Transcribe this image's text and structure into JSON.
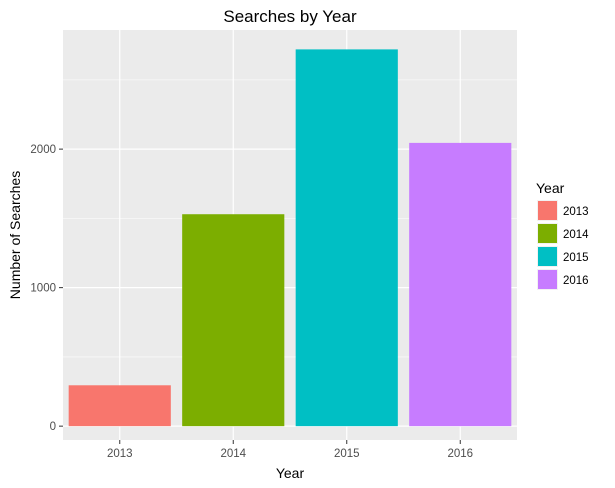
{
  "chart_data": {
    "type": "bar",
    "title": "Searches by Year",
    "xlabel": "Year",
    "ylabel": "Number of Searches",
    "categories": [
      "2013",
      "2014",
      "2015",
      "2016"
    ],
    "values": [
      295,
      1530,
      2720,
      2045
    ],
    "colors": [
      "#F8766D",
      "#7CAE00",
      "#00BFC4",
      "#C77CFF"
    ],
    "ylim": [
      -100,
      2860
    ],
    "yticks": [
      0,
      1000,
      2000
    ],
    "ytick_labels": [
      "0",
      "1000",
      "2000"
    ],
    "grid": true,
    "background": "#EBEBEB",
    "legend": {
      "title": "Year",
      "position": "right",
      "items": [
        "2013",
        "2014",
        "2015",
        "2016"
      ]
    }
  }
}
